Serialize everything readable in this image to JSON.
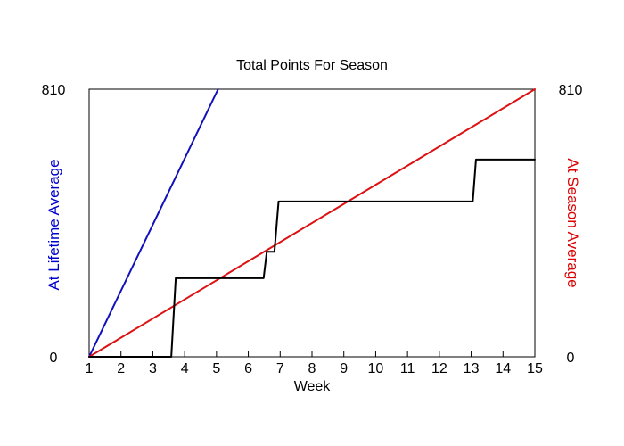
{
  "chart_data": {
    "type": "line",
    "title": "Total Points For Season",
    "xlabel": "Week",
    "ylabel_left": "At Lifetime Average",
    "ylabel_right": "At Season Average",
    "xlim": [
      1,
      15
    ],
    "ylim": [
      0,
      810
    ],
    "x_ticks": [
      "1",
      "2",
      "3",
      "4",
      "5",
      "6",
      "7",
      "8",
      "9",
      "10",
      "11",
      "12",
      "13",
      "14",
      "15"
    ],
    "y_ticks_left": [
      "0",
      "810"
    ],
    "y_ticks_right": [
      "0",
      "810"
    ],
    "grid": false,
    "colors": {
      "lifetime": "#1111bb",
      "season": "#dd1111",
      "actual": "#000000",
      "axis": "#000000",
      "left_label": "#0000cc",
      "right_label": "#dd0000"
    },
    "series": [
      {
        "key": "lifetime",
        "x": [
          1,
          5.05
        ],
        "y": [
          0,
          810
        ]
      },
      {
        "key": "season",
        "x": [
          1,
          15
        ],
        "y": [
          0,
          810
        ]
      },
      {
        "key": "actual",
        "x": [
          1,
          3.58,
          3.72,
          6.48,
          6.58,
          6.82,
          6.95,
          13.05,
          13.15,
          15
        ],
        "y": [
          0,
          0,
          238,
          238,
          318,
          318,
          470,
          470,
          597,
          597
        ]
      }
    ]
  }
}
